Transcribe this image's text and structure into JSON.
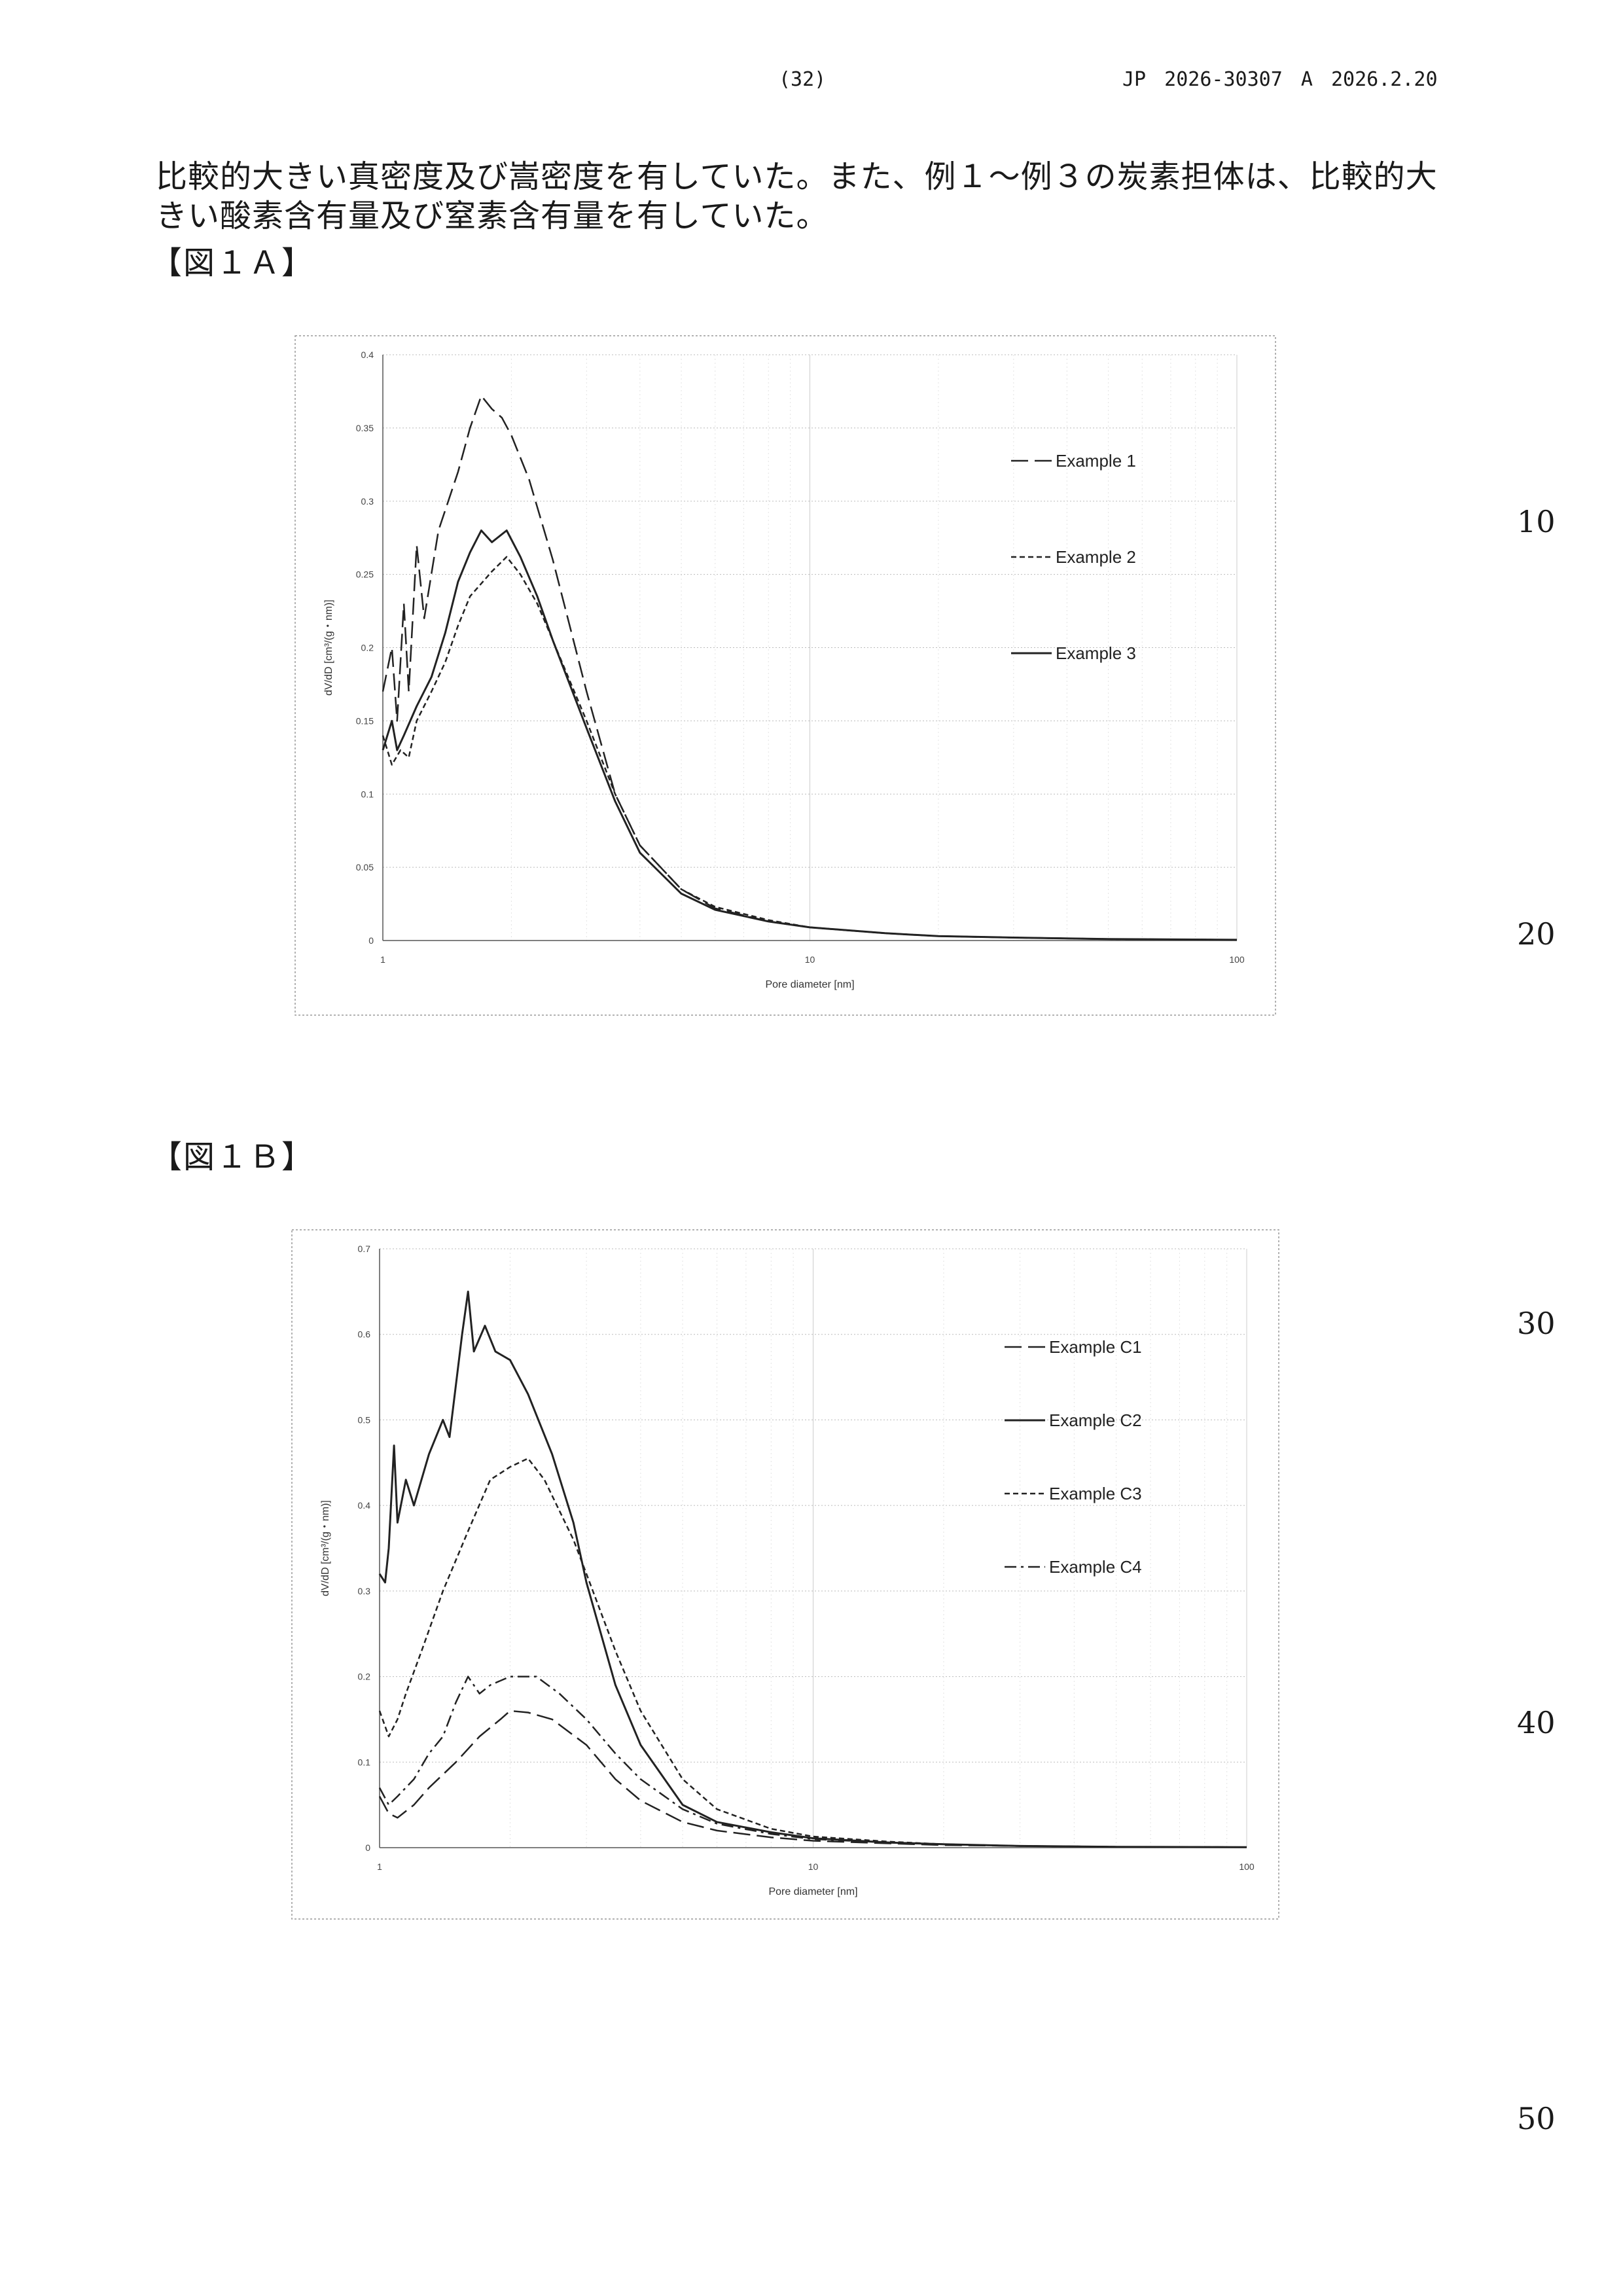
{
  "header": {
    "page_number": "(32)",
    "publication": "JP  2026-30307  A  2026.2.20"
  },
  "body": {
    "line_1": "比較的大きい真密度及び嵩密度を有していた。また、例１～例３の炭素担体は、比較的大",
    "line_2": "きい酸素含有量及び窒素含有量を有していた。"
  },
  "line_numbers": [
    "10",
    "20",
    "30",
    "40",
    "50"
  ],
  "figures": [
    {
      "label": "【図１Ａ】"
    },
    {
      "label": "【図１Ｂ】"
    }
  ],
  "chart_data": [
    {
      "type": "line",
      "x_scale": "log",
      "xlim": [
        1,
        100
      ],
      "ylim": [
        0,
        0.4
      ],
      "x_ticks": [
        "1",
        "10",
        "100"
      ],
      "y_ticks": [
        "0",
        "0.05",
        "0.1",
        "0.15",
        "0.2",
        "0.25",
        "0.3",
        "0.35",
        "0.4"
      ],
      "xlabel": "Pore diameter [nm]",
      "ylabel": "dV/dD [cm³/(g・nm)]",
      "grid": true,
      "legend_position": "right",
      "series": [
        {
          "name": "Example 1",
          "dash": "long-dash",
          "points": [
            [
              1,
              0.17
            ],
            [
              1.05,
              0.2
            ],
            [
              1.08,
              0.15
            ],
            [
              1.12,
              0.23
            ],
            [
              1.15,
              0.17
            ],
            [
              1.2,
              0.27
            ],
            [
              1.25,
              0.22
            ],
            [
              1.35,
              0.28
            ],
            [
              1.5,
              0.32
            ],
            [
              1.6,
              0.35
            ],
            [
              1.7,
              0.372
            ],
            [
              1.8,
              0.363
            ],
            [
              1.9,
              0.357
            ],
            [
              2.0,
              0.345
            ],
            [
              2.2,
              0.315
            ],
            [
              2.5,
              0.26
            ],
            [
              3.0,
              0.17
            ],
            [
              3.5,
              0.1
            ],
            [
              4,
              0.065
            ],
            [
              5,
              0.035
            ],
            [
              6,
              0.022
            ],
            [
              8,
              0.013
            ],
            [
              10,
              0.009
            ],
            [
              15,
              0.005
            ],
            [
              20,
              0.003
            ],
            [
              30,
              0.002
            ],
            [
              50,
              0.001
            ],
            [
              100,
              0.0005
            ]
          ]
        },
        {
          "name": "Example 2",
          "dash": "short-dash",
          "points": [
            [
              1,
              0.14
            ],
            [
              1.05,
              0.12
            ],
            [
              1.1,
              0.13
            ],
            [
              1.15,
              0.125
            ],
            [
              1.2,
              0.15
            ],
            [
              1.3,
              0.17
            ],
            [
              1.4,
              0.19
            ],
            [
              1.5,
              0.215
            ],
            [
              1.6,
              0.235
            ],
            [
              1.8,
              0.252
            ],
            [
              1.95,
              0.262
            ],
            [
              2.1,
              0.25
            ],
            [
              2.3,
              0.23
            ],
            [
              2.5,
              0.205
            ],
            [
              3.0,
              0.15
            ],
            [
              3.5,
              0.1
            ],
            [
              4,
              0.065
            ],
            [
              5,
              0.035
            ],
            [
              6,
              0.023
            ],
            [
              8,
              0.014
            ],
            [
              10,
              0.009
            ],
            [
              15,
              0.005
            ],
            [
              20,
              0.003
            ],
            [
              30,
              0.002
            ],
            [
              50,
              0.001
            ],
            [
              100,
              0.0005
            ]
          ]
        },
        {
          "name": "Example 3",
          "dash": "solid",
          "points": [
            [
              1,
              0.13
            ],
            [
              1.05,
              0.15
            ],
            [
              1.08,
              0.13
            ],
            [
              1.12,
              0.14
            ],
            [
              1.2,
              0.16
            ],
            [
              1.3,
              0.18
            ],
            [
              1.4,
              0.21
            ],
            [
              1.5,
              0.245
            ],
            [
              1.6,
              0.265
            ],
            [
              1.7,
              0.28
            ],
            [
              1.8,
              0.272
            ],
            [
              1.95,
              0.28
            ],
            [
              2.1,
              0.262
            ],
            [
              2.3,
              0.235
            ],
            [
              2.5,
              0.205
            ],
            [
              3.0,
              0.145
            ],
            [
              3.5,
              0.095
            ],
            [
              4,
              0.06
            ],
            [
              5,
              0.032
            ],
            [
              6,
              0.021
            ],
            [
              8,
              0.013
            ],
            [
              10,
              0.009
            ],
            [
              15,
              0.005
            ],
            [
              20,
              0.003
            ],
            [
              30,
              0.002
            ],
            [
              50,
              0.001
            ],
            [
              100,
              0.0005
            ]
          ]
        }
      ]
    },
    {
      "type": "line",
      "x_scale": "log",
      "xlim": [
        1,
        100
      ],
      "ylim": [
        0,
        0.7
      ],
      "x_ticks": [
        "1",
        "10",
        "100"
      ],
      "y_ticks": [
        "0",
        "0.1",
        "0.2",
        "0.3",
        "0.4",
        "0.5",
        "0.6",
        "0.7"
      ],
      "xlabel": "Pore diameter [nm]",
      "ylabel": "dV/dD [cm³/(g・nm)]",
      "grid": true,
      "legend_position": "right",
      "series": [
        {
          "name": "Example C1",
          "dash": "long-dash",
          "points": [
            [
              1,
              0.06
            ],
            [
              1.05,
              0.04
            ],
            [
              1.1,
              0.035
            ],
            [
              1.2,
              0.05
            ],
            [
              1.3,
              0.07
            ],
            [
              1.5,
              0.1
            ],
            [
              1.7,
              0.13
            ],
            [
              1.9,
              0.15
            ],
            [
              2.0,
              0.16
            ],
            [
              2.2,
              0.158
            ],
            [
              2.5,
              0.15
            ],
            [
              3.0,
              0.12
            ],
            [
              3.5,
              0.08
            ],
            [
              4,
              0.055
            ],
            [
              5,
              0.03
            ],
            [
              6,
              0.02
            ],
            [
              8,
              0.012
            ],
            [
              10,
              0.008
            ],
            [
              15,
              0.005
            ],
            [
              20,
              0.003
            ],
            [
              30,
              0.002
            ],
            [
              50,
              0.001
            ],
            [
              100,
              0.0005
            ]
          ]
        },
        {
          "name": "Example C2",
          "dash": "solid",
          "points": [
            [
              1,
              0.32
            ],
            [
              1.03,
              0.31
            ],
            [
              1.05,
              0.35
            ],
            [
              1.08,
              0.47
            ],
            [
              1.1,
              0.38
            ],
            [
              1.15,
              0.43
            ],
            [
              1.2,
              0.4
            ],
            [
              1.3,
              0.46
            ],
            [
              1.4,
              0.5
            ],
            [
              1.45,
              0.48
            ],
            [
              1.55,
              0.6
            ],
            [
              1.6,
              0.65
            ],
            [
              1.65,
              0.58
            ],
            [
              1.75,
              0.61
            ],
            [
              1.85,
              0.58
            ],
            [
              2.0,
              0.57
            ],
            [
              2.2,
              0.53
            ],
            [
              2.5,
              0.46
            ],
            [
              2.8,
              0.38
            ],
            [
              3.0,
              0.31
            ],
            [
              3.5,
              0.19
            ],
            [
              4,
              0.12
            ],
            [
              5,
              0.05
            ],
            [
              6,
              0.03
            ],
            [
              8,
              0.018
            ],
            [
              10,
              0.011
            ],
            [
              15,
              0.006
            ],
            [
              20,
              0.004
            ],
            [
              30,
              0.002
            ],
            [
              50,
              0.001
            ],
            [
              100,
              0.0005
            ]
          ]
        },
        {
          "name": "Example C3",
          "dash": "short-dash",
          "points": [
            [
              1,
              0.16
            ],
            [
              1.05,
              0.13
            ],
            [
              1.1,
              0.15
            ],
            [
              1.15,
              0.18
            ],
            [
              1.25,
              0.23
            ],
            [
              1.4,
              0.3
            ],
            [
              1.6,
              0.37
            ],
            [
              1.8,
              0.43
            ],
            [
              2.0,
              0.445
            ],
            [
              2.2,
              0.455
            ],
            [
              2.4,
              0.43
            ],
            [
              2.8,
              0.36
            ],
            [
              3.0,
              0.32
            ],
            [
              3.5,
              0.23
            ],
            [
              4,
              0.16
            ],
            [
              5,
              0.08
            ],
            [
              6,
              0.045
            ],
            [
              8,
              0.022
            ],
            [
              10,
              0.013
            ],
            [
              15,
              0.007
            ],
            [
              20,
              0.004
            ],
            [
              30,
              0.002
            ],
            [
              50,
              0.001
            ],
            [
              100,
              0.0005
            ]
          ]
        },
        {
          "name": "Example C4",
          "dash": "dash-dot",
          "points": [
            [
              1,
              0.07
            ],
            [
              1.05,
              0.05
            ],
            [
              1.1,
              0.06
            ],
            [
              1.2,
              0.08
            ],
            [
              1.3,
              0.11
            ],
            [
              1.4,
              0.13
            ],
            [
              1.5,
              0.17
            ],
            [
              1.6,
              0.2
            ],
            [
              1.7,
              0.18
            ],
            [
              1.8,
              0.19
            ],
            [
              2.0,
              0.2
            ],
            [
              2.3,
              0.2
            ],
            [
              2.6,
              0.18
            ],
            [
              3.0,
              0.15
            ],
            [
              3.5,
              0.11
            ],
            [
              4,
              0.08
            ],
            [
              5,
              0.045
            ],
            [
              6,
              0.028
            ],
            [
              8,
              0.016
            ],
            [
              10,
              0.01
            ],
            [
              15,
              0.006
            ],
            [
              20,
              0.004
            ],
            [
              30,
              0.002
            ],
            [
              50,
              0.001
            ],
            [
              100,
              0.0005
            ]
          ]
        }
      ]
    }
  ]
}
